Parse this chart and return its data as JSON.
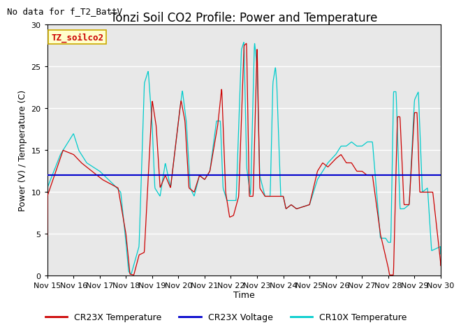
{
  "title": "Tonzi Soil CO2 Profile: Power and Temperature",
  "subtitle": "No data for f_T2_BattV",
  "ylabel": "Power (V) / Temperature (C)",
  "xlabel": "Time",
  "xlim_labels": [
    "Nov 15",
    "Nov 16",
    "Nov 17",
    "Nov 18",
    "Nov 19",
    "Nov 20",
    "Nov 21",
    "Nov 22",
    "Nov 23",
    "Nov 24",
    "Nov 25",
    "Nov 26",
    "Nov 27",
    "Nov 28",
    "Nov 29",
    "Nov 30"
  ],
  "ylim": [
    0,
    30
  ],
  "yticks": [
    0,
    5,
    10,
    15,
    20,
    25,
    30
  ],
  "voltage_color": "#0000cc",
  "cr23x_temp_color": "#cc0000",
  "cr10x_temp_color": "#00cccc",
  "figure_bg_color": "#ffffff",
  "plot_bg_color": "#e8e8e8",
  "legend_label_color": "#cc0000",
  "legend_box_label": "TZ_soilco2",
  "legend_entries": [
    "CR23X Temperature",
    "CR23X Voltage",
    "CR10X Temperature"
  ],
  "legend_colors": [
    "#cc0000",
    "#0000cc",
    "#00cccc"
  ],
  "grid_color": "#ffffff",
  "title_fontsize": 12,
  "subtitle_fontsize": 9,
  "axis_label_fontsize": 9,
  "tick_fontsize": 8,
  "voltage_value": 12.0
}
